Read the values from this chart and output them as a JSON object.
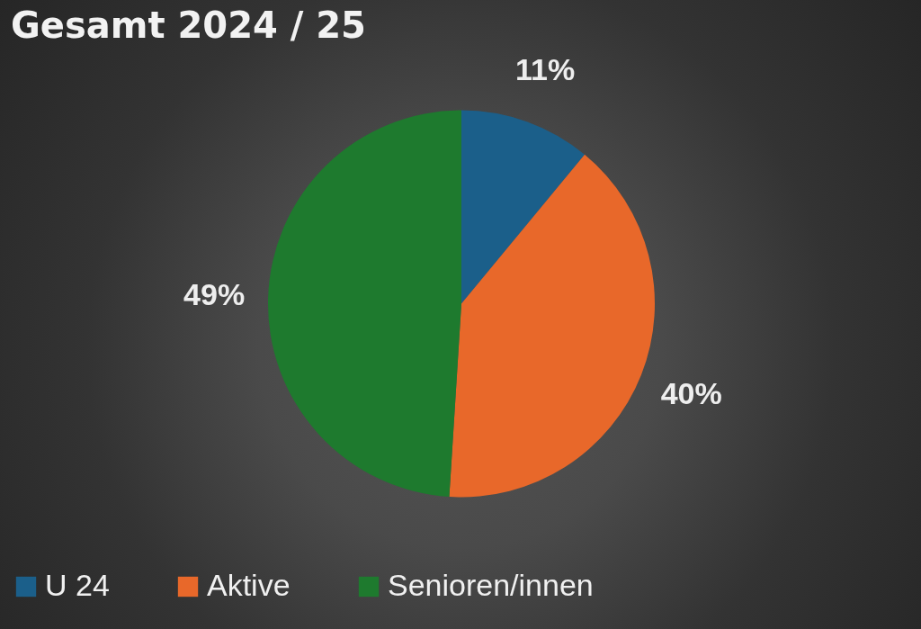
{
  "chart_data": {
    "type": "pie",
    "title": "Gesamt 2024 / 25",
    "categories": [
      "U 24",
      "Aktive",
      "Senioren/innen"
    ],
    "values": [
      11,
      40,
      49
    ],
    "colors": [
      "#1b5f8a",
      "#e8682a",
      "#1e7a2e"
    ],
    "value_labels": [
      "11%",
      "40%",
      "49%"
    ],
    "legend": "bottom"
  }
}
